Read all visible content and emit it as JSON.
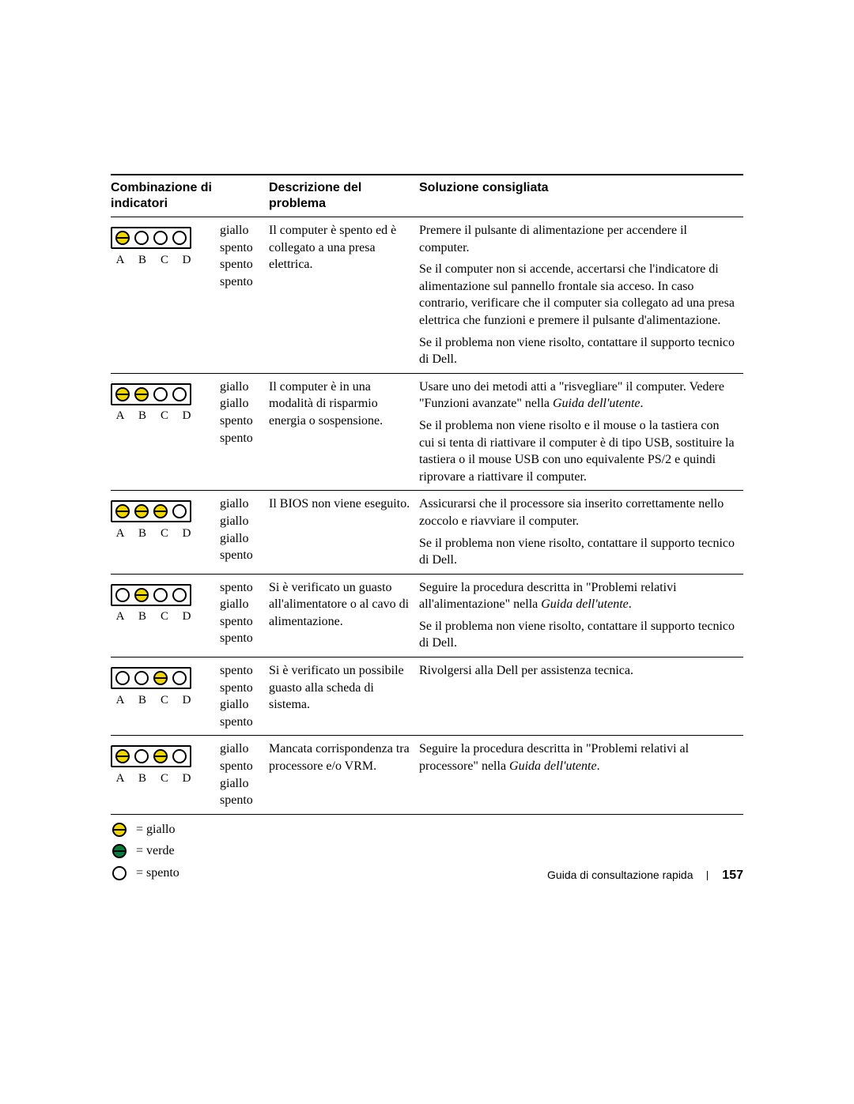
{
  "colors": {
    "yellow": "#f2d600",
    "green": "#0a7a3b",
    "off": "#ffffff",
    "border": "#000000",
    "text": "#000000",
    "background": "#ffffff"
  },
  "typography": {
    "serif_family": "Georgia, 'Times New Roman', serif",
    "sans_family": "'Helvetica Neue', Helvetica, Arial, sans-serif",
    "body_fontsize_pt": 12,
    "header_fontsize_pt": 12,
    "header_weight": 700
  },
  "header": {
    "col1": "Combinazione di indicatori",
    "col2": "Descrizione del problema",
    "col3": "Soluzione consigliata"
  },
  "led_labels": [
    "A",
    "B",
    "C",
    "D"
  ],
  "state_labels": {
    "giallo": "giallo",
    "spento": "spento"
  },
  "rows": [
    {
      "leds": [
        "giallo",
        "spento",
        "spento",
        "spento"
      ],
      "desc": "Il computer è spento ed è collegato a una presa elettrica.",
      "solutions": [
        {
          "text": "Premere il pulsante di alimentazione per accendere il computer."
        },
        {
          "text": "Se il computer non si accende, accertarsi che l'indicatore di alimentazione sul pannello frontale sia acceso. In caso contrario, verificare che il computer sia collegato ad una presa elettrica che funzioni e premere il pulsante d'alimentazione."
        },
        {
          "text": "Se il problema non viene risolto, contattare il supporto tecnico di Dell."
        }
      ]
    },
    {
      "leds": [
        "giallo",
        "giallo",
        "spento",
        "spento"
      ],
      "desc": "Il computer è in una modalità di risparmio energia o sospensione.",
      "solutions": [
        {
          "text_pre": "Usare uno dei metodi atti a \"risvegliare\" il computer. Vedere \"Funzioni avanzate\" nella ",
          "italic": "Guida dell'utente",
          "text_post": "."
        },
        {
          "text": "Se il problema non viene risolto e il mouse o la tastiera con cui si tenta di riattivare il computer è di tipo USB, sostituire la tastiera o il mouse USB con uno equivalente PS/2 e quindi riprovare a riattivare il computer."
        }
      ]
    },
    {
      "leds": [
        "giallo",
        "giallo",
        "giallo",
        "spento"
      ],
      "desc": "Il BIOS non viene eseguito.",
      "solutions": [
        {
          "text": "Assicurarsi che il processore sia inserito correttamente nello zoccolo e riavviare il computer."
        },
        {
          "text": "Se il problema non viene risolto, contattare il supporto tecnico di Dell."
        }
      ]
    },
    {
      "leds": [
        "spento",
        "giallo",
        "spento",
        "spento"
      ],
      "desc": "Si è verificato un guasto all'alimentatore o al cavo di alimentazione.",
      "solutions": [
        {
          "text_pre": "Seguire la procedura descritta in \"Problemi relativi all'alimentazione\" nella ",
          "italic": "Guida dell'utente",
          "text_post": "."
        },
        {
          "text": "Se il problema non viene risolto, contattare il supporto tecnico di Dell."
        }
      ]
    },
    {
      "leds": [
        "spento",
        "spento",
        "giallo",
        "spento"
      ],
      "desc": "Si è verificato un possibile guasto alla scheda di sistema.",
      "solutions": [
        {
          "text": "Rivolgersi alla Dell per assistenza tecnica."
        }
      ]
    },
    {
      "leds": [
        "giallo",
        "spento",
        "giallo",
        "spento"
      ],
      "desc": "Mancata corrispondenza tra processore e/o VRM.",
      "solutions": [
        {
          "text_pre": "Seguire la procedura descritta in \"Problemi relativi al processore\" nella ",
          "italic": "Guida dell'utente",
          "text_post": "."
        }
      ]
    }
  ],
  "legend": {
    "giallo": "= giallo",
    "verde": "= verde",
    "spento": "= spento"
  },
  "footer": {
    "title": "Guida di consultazione rapida",
    "page": "157"
  }
}
